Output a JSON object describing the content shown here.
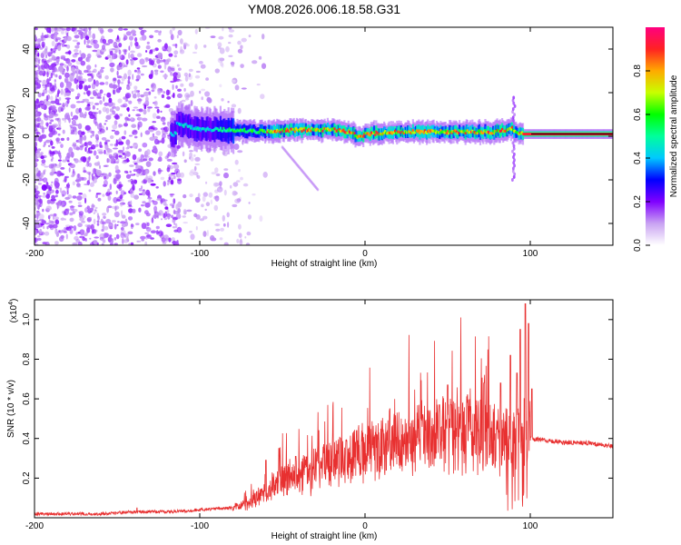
{
  "title": "YM08.2026.006.18.58.G31",
  "chart_data": [
    {
      "type": "heatmap",
      "title": "YM08.2026.006.18.58.G31",
      "xlabel": "Height of straight line (km)",
      "ylabel": "Frequency (Hz)",
      "xlim": [
        -200,
        150
      ],
      "ylim": [
        -50,
        50
      ],
      "x_ticks": [
        -200,
        -100,
        0,
        100
      ],
      "y_ticks": [
        -40,
        -20,
        0,
        20,
        40
      ],
      "colorbar": {
        "label": "Normalized spectral amplitude",
        "range": [
          0,
          1
        ],
        "ticks": [
          "0.0",
          "0.2",
          "0.4",
          "0.6",
          "0.8"
        ],
        "colors": [
          "#ffffff",
          "#c9a2f2",
          "#8000ff",
          "#0000ff",
          "#00c8ff",
          "#00ff9c",
          "#00ff00",
          "#c8ff00",
          "#ffaa00",
          "#ff2222",
          "#ff0080"
        ]
      },
      "ridge": {
        "x": [
          -115,
          -100,
          -80,
          -60,
          -40,
          -20,
          -10,
          -5,
          0,
          20,
          40,
          60,
          80,
          88,
          92,
          100,
          150
        ],
        "y": [
          6,
          3,
          3,
          2,
          3,
          3,
          2,
          0,
          1,
          2,
          2,
          2,
          2,
          4,
          1,
          1,
          1
        ]
      }
    },
    {
      "type": "line",
      "xlabel": "Height of straight line (km)",
      "ylabel": "SNR (10 * v/v)",
      "y_scale_label": "(x10",
      "y_scale_exp": "4",
      "xlim": [
        -200,
        150
      ],
      "ylim": [
        0,
        1.1
      ],
      "x_ticks": [
        -200,
        -100,
        0,
        100
      ],
      "y_ticks": [
        "0.2",
        "0.4",
        "0.6",
        "0.8",
        "1.0"
      ],
      "series": [
        {
          "name": "SNR",
          "color": "#e83030",
          "x": [
            -200,
            -160,
            -140,
            -120,
            -100,
            -80,
            -70,
            -60,
            -50,
            -40,
            -30,
            -20,
            -10,
            0,
            10,
            20,
            30,
            40,
            50,
            60,
            70,
            80,
            88,
            92,
            96,
            100,
            110,
            120,
            130,
            140,
            150
          ],
          "envelope": [
            0.02,
            0.02,
            0.03,
            0.03,
            0.04,
            0.05,
            0.08,
            0.14,
            0.22,
            0.22,
            0.27,
            0.3,
            0.33,
            0.36,
            0.38,
            0.4,
            0.42,
            0.44,
            0.46,
            0.48,
            0.46,
            0.44,
            0.44,
            0.46,
            0.44,
            0.4,
            0.39,
            0.38,
            0.38,
            0.37,
            0.36
          ],
          "spikes": [
            [
              -138,
              0.05
            ],
            [
              -60,
              0.29
            ],
            [
              -52,
              0.35
            ],
            [
              -42,
              0.31
            ],
            [
              -28,
              0.44
            ],
            [
              -15,
              0.4
            ],
            [
              -5,
              0.44
            ],
            [
              15,
              0.55
            ],
            [
              35,
              0.52
            ],
            [
              45,
              0.57
            ],
            [
              50,
              0.67
            ],
            [
              52,
              0.57
            ],
            [
              62,
              0.62
            ],
            [
              72,
              0.68
            ],
            [
              82,
              0.68
            ],
            [
              88,
              0.82
            ],
            [
              92,
              0.73
            ],
            [
              94,
              0.95
            ],
            [
              97,
              1.08
            ],
            [
              99,
              0.98
            ],
            [
              101,
              0.65
            ]
          ]
        }
      ]
    }
  ]
}
